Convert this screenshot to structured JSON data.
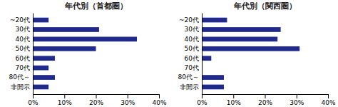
{
  "chart_data": [
    {
      "type": "bar",
      "orientation": "horizontal",
      "title": "年代別（首都圏）",
      "categories": [
        "~20代",
        "30代",
        "40代",
        "50代",
        "60代",
        "70代",
        "80代～",
        "非開示"
      ],
      "values": [
        5,
        21,
        33,
        20,
        7,
        5,
        7,
        5
      ],
      "color": "#1f2a8c",
      "xlim": [
        0,
        40
      ],
      "xticks": [
        {
          "value": 0,
          "label": "0%"
        },
        {
          "value": 10,
          "label": "10%"
        },
        {
          "value": 20,
          "label": "20%"
        },
        {
          "value": 30,
          "label": "30%"
        },
        {
          "value": 40,
          "label": "40%"
        }
      ],
      "grid": false
    },
    {
      "type": "bar",
      "orientation": "horizontal",
      "title": "年代別（関西圏）",
      "categories": [
        "~20代",
        "30代",
        "40代",
        "50代",
        "60代",
        "70代",
        "80代～",
        "非開示"
      ],
      "values": [
        8,
        25,
        24,
        31,
        3,
        0,
        7,
        7
      ],
      "color": "#1f2a8c",
      "xlim": [
        0,
        40
      ],
      "xticks": [
        {
          "value": 0,
          "label": "0%"
        },
        {
          "value": 10,
          "label": "10%"
        },
        {
          "value": 20,
          "label": "20%"
        },
        {
          "value": 30,
          "label": "30%"
        },
        {
          "value": 40,
          "label": "40%"
        }
      ],
      "grid": false
    }
  ]
}
